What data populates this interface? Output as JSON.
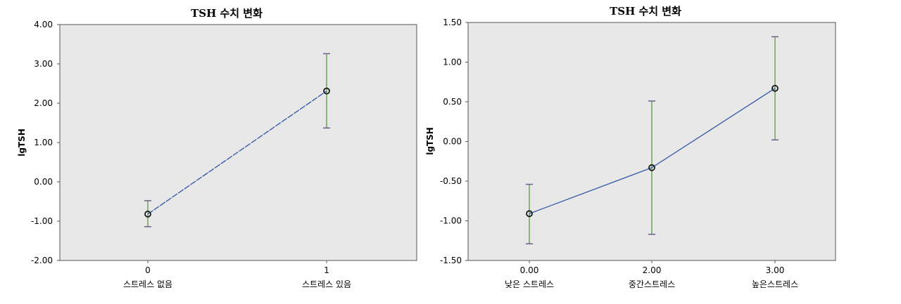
{
  "chart_data": [
    {
      "type": "line",
      "title": "TSH 수치 변화",
      "ylabel": "lgTSH",
      "xlabel": "",
      "x_ticks": [
        "0",
        "1"
      ],
      "categories": [
        "스트레스 없음",
        "스트레스 있음"
      ],
      "y_ticks": [
        "4.00",
        "3.00",
        "2.00",
        "1.00",
        "0.00",
        "-1.00",
        "-2.00"
      ],
      "ylim": [
        -2,
        4
      ],
      "values": [
        -0.82,
        2.31
      ],
      "error_low": [
        -1.14,
        1.37
      ],
      "error_high": [
        -0.48,
        3.26
      ],
      "line_style": "dashed",
      "colors": {
        "line": "#3a5ea8",
        "error": "#6fa35c",
        "cap": "#6a5f8a",
        "background": "#e8e8e8"
      }
    },
    {
      "type": "line",
      "title": "TSH 수치 변화",
      "ylabel": "lgTSH",
      "xlabel": "",
      "x_ticks": [
        "0.00",
        "2.00",
        "3.00"
      ],
      "categories": [
        "낮은 스트레스",
        "중간스트레스",
        "높은스트레스"
      ],
      "y_ticks": [
        "1.50",
        "1.00",
        "0.50",
        "0.00",
        "-0.50",
        "-1.00",
        "-1.50"
      ],
      "ylim": [
        -1.5,
        1.5
      ],
      "values": [
        -0.91,
        -0.33,
        0.67
      ],
      "error_low": [
        -1.29,
        -1.17,
        0.02
      ],
      "error_high": [
        -0.54,
        0.51,
        1.32
      ],
      "line_style": "solid",
      "colors": {
        "line": "#3a5ea8",
        "error": "#6fa35c",
        "cap": "#6a5f8a",
        "background": "#e8e8e8"
      }
    }
  ]
}
